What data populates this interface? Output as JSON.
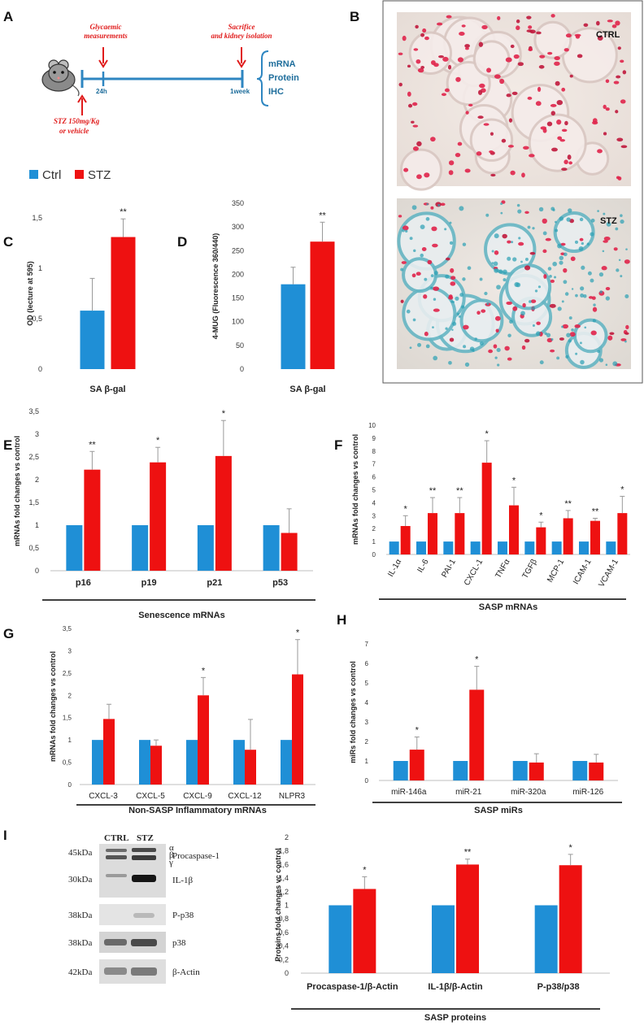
{
  "colors": {
    "ctrl": "#1f8fd6",
    "stz": "#ee1111",
    "timeline": "#2e86c1",
    "arrow": "#e01b1b"
  },
  "legend": {
    "ctrl": "Ctrl",
    "stz": "STZ"
  },
  "panel_a": {
    "label": "A",
    "glycaemic": [
      "Glycaemic",
      "measurements"
    ],
    "sacrifice": [
      "Sacrifice",
      "and kidney isolation"
    ],
    "t24": "24h",
    "t1week": "1week",
    "outputs": [
      "mRNA",
      "Protein",
      "IHC"
    ],
    "stz": [
      "STZ 150mg/Kg",
      "or vehicle"
    ]
  },
  "panel_b": {
    "label": "B",
    "ctrl": "CTRL",
    "stz": "STZ"
  },
  "panel_i": {
    "label": "I",
    "lanes": [
      "CTRL",
      "STZ"
    ],
    "kda": [
      "45kDa",
      "30kDa",
      "38kDa",
      "38kDa",
      "42kDa"
    ],
    "proteins": [
      "Procaspase-1",
      "IL-1β",
      "P-p38",
      "p38",
      "β-Actin"
    ],
    "greek": [
      "α",
      "β",
      "γ"
    ]
  },
  "chart_data": [
    {
      "id": "C",
      "label": "C",
      "type": "bar",
      "title": "",
      "xlabel": "SA β-gal",
      "ylabel": "OD (lecture at 595)",
      "ylim": [
        0,
        1.5
      ],
      "ticks": [
        "0",
        "0,5",
        "1",
        "1,5"
      ],
      "categories": [
        ""
      ],
      "series": [
        {
          "name": "Ctrl",
          "values": [
            0.58
          ],
          "errors": [
            0.32
          ]
        },
        {
          "name": "STZ",
          "values": [
            1.31
          ],
          "errors": [
            0.18
          ]
        }
      ],
      "sig": [
        "**"
      ]
    },
    {
      "id": "D",
      "label": "D",
      "type": "bar",
      "title": "",
      "xlabel": "SA β-gal",
      "ylabel": "4-MUG (Fluorescence 360/440)",
      "ylim": [
        0,
        350
      ],
      "ticks": [
        "0",
        "50",
        "100",
        "150",
        "200",
        "250",
        "300",
        "350"
      ],
      "categories": [
        ""
      ],
      "series": [
        {
          "name": "Ctrl",
          "values": [
            179
          ],
          "errors": [
            36
          ]
        },
        {
          "name": "STZ",
          "values": [
            269
          ],
          "errors": [
            41
          ]
        }
      ],
      "sig": [
        "**"
      ]
    },
    {
      "id": "E",
      "label": "E",
      "type": "bar",
      "title": "",
      "xlabel": "Senescence mRNAs",
      "ylabel": "mRNAs fold changes vs control",
      "ylim": [
        0,
        3.5
      ],
      "ticks": [
        "0",
        "0,5",
        "1",
        "1,5",
        "2",
        "2,5",
        "3",
        "3,5"
      ],
      "categories": [
        "p16",
        "p19",
        "p21",
        "p53"
      ],
      "series": [
        {
          "name": "Ctrl",
          "values": [
            1,
            1,
            1,
            1
          ],
          "errors": [
            0,
            0,
            0,
            0
          ]
        },
        {
          "name": "STZ",
          "values": [
            2.22,
            2.38,
            2.52,
            0.83
          ],
          "errors": [
            0.4,
            0.33,
            0.78,
            0.53
          ]
        }
      ],
      "sig": [
        "**",
        "*",
        "*",
        ""
      ]
    },
    {
      "id": "F",
      "label": "F",
      "type": "bar",
      "title": "",
      "xlabel": "SASP mRNAs",
      "ylabel": "mRNAs fold changes vs control",
      "ylim": [
        0,
        10
      ],
      "ticks": [
        "0",
        "1",
        "2",
        "3",
        "4",
        "5",
        "6",
        "7",
        "8",
        "9",
        "10"
      ],
      "categories": [
        "IL-1α",
        "IL-6",
        "PAI-1",
        "CXCL-1",
        "TNFα",
        "TGFβ",
        "MCP-1",
        "ICAM-1",
        "VCAM-1"
      ],
      "series": [
        {
          "name": "Ctrl",
          "values": [
            1,
            1,
            1,
            1,
            1,
            1,
            1,
            1,
            1
          ],
          "errors": [
            0,
            0,
            0,
            0,
            0,
            0,
            0,
            0,
            0
          ]
        },
        {
          "name": "STZ",
          "values": [
            2.2,
            3.2,
            3.2,
            7.1,
            3.8,
            2.1,
            2.8,
            2.6,
            3.2
          ],
          "errors": [
            0.8,
            1.2,
            1.2,
            1.7,
            1.4,
            0.4,
            0.6,
            0.2,
            1.3
          ]
        }
      ],
      "sig": [
        "*",
        "**",
        "**",
        "*",
        "*",
        "*",
        "**",
        "**",
        "*"
      ]
    },
    {
      "id": "G",
      "label": "G",
      "type": "bar",
      "title": "",
      "xlabel": "Non-SASP Inflammatory mRNAs",
      "ylabel": "mRNAs fold changes vs control",
      "ylim": [
        0,
        3.5
      ],
      "ticks": [
        "0",
        "0,5",
        "1",
        "1,5",
        "2",
        "2,5",
        "3",
        "3,5"
      ],
      "categories": [
        "CXCL-3",
        "CXCL-5",
        "CXCL-9",
        "CXCL-12",
        "NLPR3"
      ],
      "series": [
        {
          "name": "Ctrl",
          "values": [
            1,
            1,
            1,
            1,
            1
          ],
          "errors": [
            0,
            0,
            0,
            0,
            0
          ]
        },
        {
          "name": "STZ",
          "values": [
            1.47,
            0.87,
            2.0,
            0.78,
            2.47
          ],
          "errors": [
            0.33,
            0.13,
            0.4,
            0.68,
            0.78
          ]
        }
      ],
      "sig": [
        "",
        "",
        "*",
        "",
        "*"
      ]
    },
    {
      "id": "H",
      "label": "H",
      "type": "bar",
      "title": "",
      "xlabel": "SASP miRs",
      "ylabel": "miRs fold changes vs control",
      "ylim": [
        0,
        7
      ],
      "ticks": [
        "0",
        "1",
        "2",
        "3",
        "4",
        "5",
        "6",
        "7"
      ],
      "categories": [
        "miR-146a",
        "miR-21",
        "miR-320a",
        "miR-126"
      ],
      "series": [
        {
          "name": "Ctrl",
          "values": [
            1,
            1,
            1,
            1
          ],
          "errors": [
            0,
            0,
            0,
            0
          ]
        },
        {
          "name": "STZ",
          "values": [
            1.58,
            4.65,
            0.92,
            0.92
          ],
          "errors": [
            0.65,
            1.2,
            0.45,
            0.42
          ]
        }
      ],
      "sig": [
        "*",
        "*",
        "",
        ""
      ]
    },
    {
      "id": "I",
      "label": "",
      "type": "bar",
      "title": "",
      "xlabel": "SASP proteins",
      "ylabel": "Proteins fold changes vc control",
      "ylim": [
        0,
        2
      ],
      "ticks": [
        "0",
        "0,2",
        "0,4",
        "0,6",
        "0,8",
        "1",
        "1,2",
        "1,4",
        "1,6",
        "1,8",
        "2"
      ],
      "categories": [
        "Procaspase-1/β-Actin",
        "IL-1β/β-Actin",
        "P-p38/p38"
      ],
      "series": [
        {
          "name": "Ctrl",
          "values": [
            1,
            1,
            1
          ],
          "errors": [
            0,
            0,
            0
          ]
        },
        {
          "name": "STZ",
          "values": [
            1.24,
            1.6,
            1.59
          ],
          "errors": [
            0.18,
            0.08,
            0.16
          ]
        }
      ],
      "sig": [
        "*",
        "**",
        "*"
      ]
    }
  ]
}
